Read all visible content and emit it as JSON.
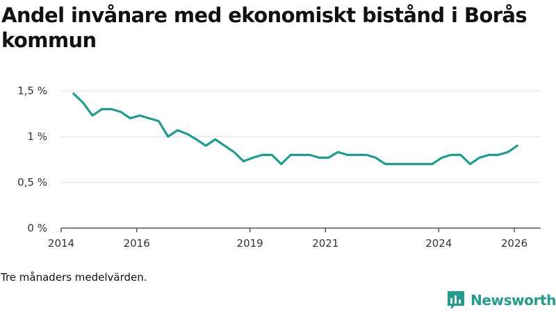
{
  "header": {
    "title": "Andel invånare med ekonomiskt bistånd i Borås kommun"
  },
  "footer": {
    "note": "Tre månaders medelvärden.",
    "brand": "Newsworthy"
  },
  "colors": {
    "line": "#1a9e8f",
    "grid": "#dddddd",
    "axis": "#333333",
    "text": "#333333",
    "brand": "#1f9e8e"
  },
  "chart_data": {
    "type": "line",
    "title": "Andel invånare med ekonomiskt bistånd i Borås kommun",
    "xlabel": "",
    "ylabel": "",
    "ylim": [
      0,
      1.5
    ],
    "xlim": [
      2014.0,
      2026.7
    ],
    "y_ticks": [
      {
        "value": 0,
        "label": "0 %"
      },
      {
        "value": 0.5,
        "label": "0,5 %"
      },
      {
        "value": 1.0,
        "label": "1 %"
      },
      {
        "value": 1.5,
        "label": "1,5 %"
      }
    ],
    "x_ticks": [
      {
        "value": 2014,
        "label": "2014"
      },
      {
        "value": 2016,
        "label": "2016"
      },
      {
        "value": 2019,
        "label": "2019"
      },
      {
        "value": 2021,
        "label": "2021"
      },
      {
        "value": 2024,
        "label": "2024"
      },
      {
        "value": 2026,
        "label": "2026"
      }
    ],
    "grid": true,
    "series": [
      {
        "name": "Andel invånare med ekonomiskt bistånd",
        "x": [
          2014.33,
          2014.58,
          2014.83,
          2015.08,
          2015.33,
          2015.58,
          2015.83,
          2016.08,
          2016.33,
          2016.58,
          2016.83,
          2017.08,
          2017.33,
          2017.58,
          2017.83,
          2018.08,
          2018.33,
          2018.58,
          2018.83,
          2019.08,
          2019.33,
          2019.58,
          2019.83,
          2020.08,
          2020.33,
          2020.58,
          2020.83,
          2021.08,
          2021.33,
          2021.58,
          2021.83,
          2022.08,
          2022.33,
          2022.58,
          2022.83,
          2023.08,
          2023.33,
          2023.58,
          2023.83,
          2024.08,
          2024.33,
          2024.58,
          2024.83,
          2025.08,
          2025.33,
          2025.58,
          2025.83,
          2026.08
        ],
        "values": [
          1.47,
          1.37,
          1.23,
          1.3,
          1.3,
          1.27,
          1.2,
          1.23,
          1.2,
          1.17,
          1.0,
          1.07,
          1.03,
          0.97,
          0.9,
          0.97,
          0.9,
          0.83,
          0.73,
          0.77,
          0.8,
          0.8,
          0.7,
          0.8,
          0.8,
          0.8,
          0.77,
          0.77,
          0.83,
          0.8,
          0.8,
          0.8,
          0.77,
          0.7,
          0.7,
          0.7,
          0.7,
          0.7,
          0.7,
          0.77,
          0.8,
          0.8,
          0.7,
          0.77,
          0.8,
          0.8,
          0.83,
          0.9
        ]
      }
    ]
  }
}
